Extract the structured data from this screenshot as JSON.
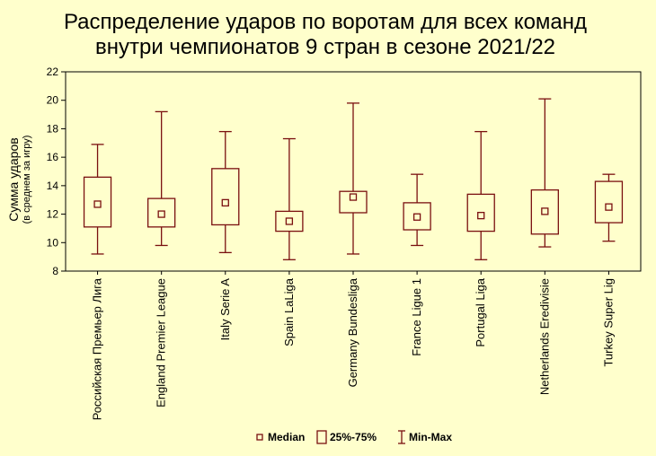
{
  "chart_data": {
    "type": "boxplot",
    "title_lines": [
      "Распределение ударов по воротам для всех команд",
      "внутри чемпионатов 9 стран в сезоне 2021/22"
    ],
    "ylabel": "Сумма ударов",
    "ylabel_sub": "(в среднем за игру)",
    "xlabel": "",
    "ylim": [
      8,
      22
    ],
    "yticks": [
      8,
      10,
      12,
      14,
      16,
      18,
      20,
      22
    ],
    "grid": false,
    "categories": [
      "Российская Премьер Лига",
      "England Premier League",
      "Italy Serie A",
      "Spain LaLiga",
      "Germany Bundesliga",
      "France Ligue 1",
      "Portugal Liga",
      "Netherlands Eredivisie",
      "Turkey Super Lig"
    ],
    "series": [
      {
        "median": [
          12.7,
          12.0,
          12.8,
          11.5,
          13.2,
          11.8,
          11.9,
          12.2,
          12.5
        ],
        "q1": [
          11.1,
          11.1,
          11.25,
          10.8,
          12.1,
          10.9,
          10.8,
          10.6,
          11.4
        ],
        "q3": [
          14.6,
          13.1,
          15.2,
          12.2,
          13.6,
          12.8,
          13.4,
          13.7,
          14.3
        ],
        "min": [
          9.2,
          9.8,
          9.3,
          8.8,
          9.2,
          9.8,
          8.8,
          9.7,
          10.1
        ],
        "max": [
          16.9,
          19.2,
          17.8,
          17.3,
          19.8,
          14.8,
          17.8,
          20.1,
          14.8
        ]
      }
    ],
    "legend": {
      "position": "bottom-center",
      "items": [
        {
          "icon": "median-square-icon",
          "label": "Median"
        },
        {
          "icon": "box-icon",
          "label": "25%-75%"
        },
        {
          "icon": "whisker-icon",
          "label": "Min-Max"
        }
      ]
    },
    "colors": {
      "background": "#ffffcc",
      "marks": "#7a1010",
      "axis": "#000000"
    }
  }
}
